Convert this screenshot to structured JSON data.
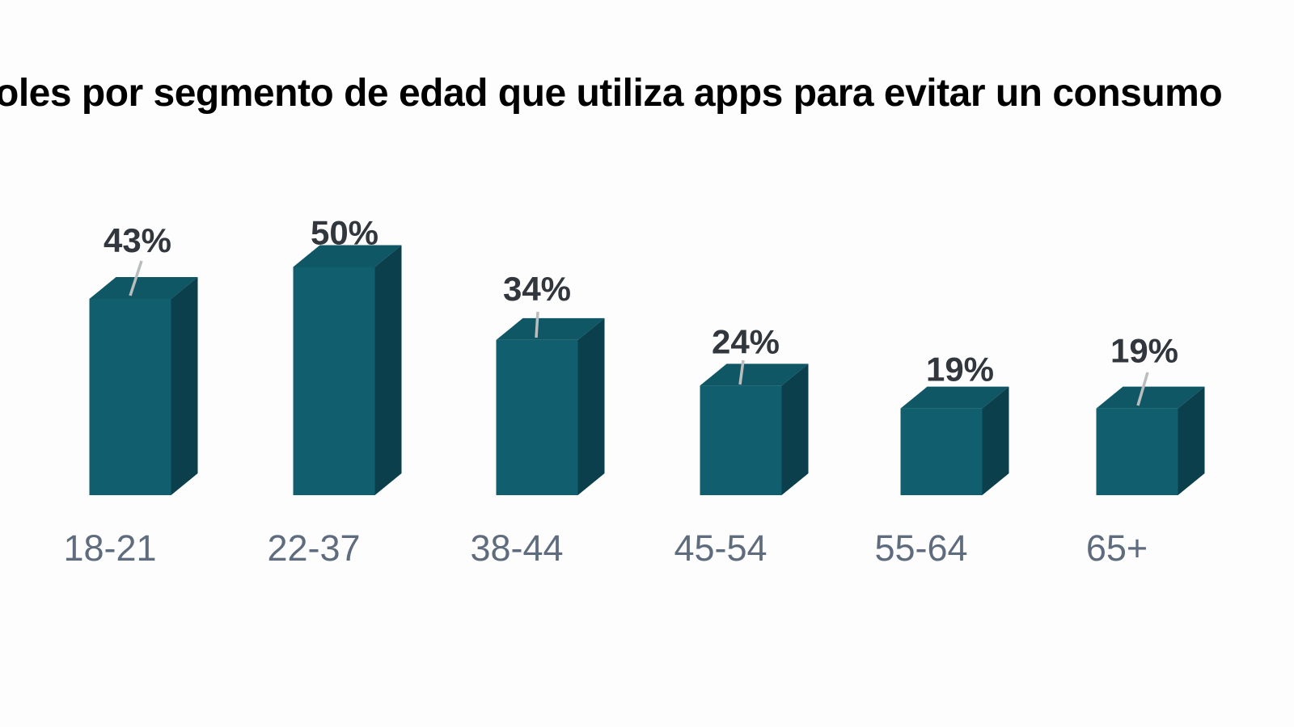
{
  "title": {
    "visible_text": "oles por segmento de edad que utiliza apps para evitar un consumo"
  },
  "colors": {
    "background": "#fdfdfd",
    "title_text": "#000000",
    "bar_front": "#115f6e",
    "bar_top": "#0f5765",
    "bar_side": "#0b3f4c",
    "percent_label": "#32373e",
    "category_label": "#5e6c7d",
    "leader_line": "#b9bdbd"
  },
  "chart_data": {
    "type": "bar",
    "style": "3d-column",
    "title": "oles por segmento de edad que utiliza apps para evitar un consumo",
    "categories": [
      "18-21",
      "22-37",
      "38-44",
      "45-54",
      "55-64",
      "65+"
    ],
    "values": [
      43,
      50,
      34,
      24,
      19,
      19
    ],
    "display_values": [
      "43%",
      "50%",
      "34%",
      "24%",
      "19%",
      "19%"
    ],
    "xlabel": "",
    "ylabel": "",
    "ylim": [
      0,
      55
    ],
    "grid": false,
    "legend": false,
    "data_labels": true,
    "axes_visible": false
  }
}
